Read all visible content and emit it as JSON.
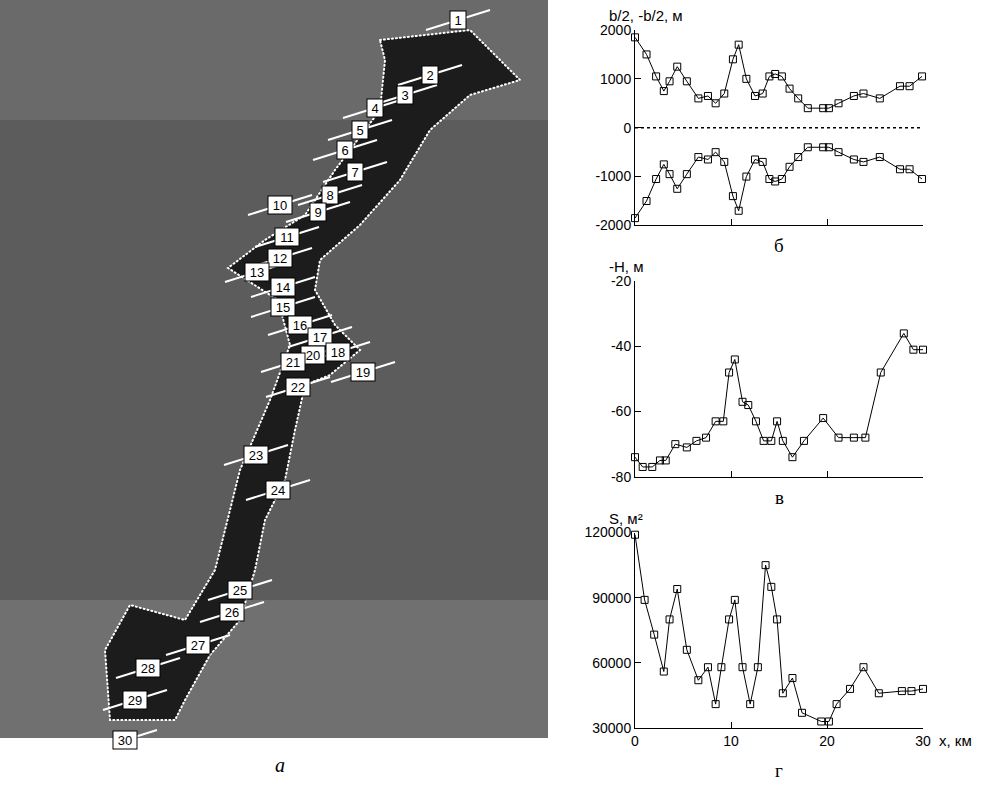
{
  "map": {
    "panel_label": "а",
    "sections": [
      "1",
      "2",
      "3",
      "4",
      "5",
      "6",
      "7",
      "8",
      "9",
      "10",
      "11",
      "12",
      "13",
      "14",
      "15",
      "16",
      "17",
      "18",
      "19",
      "20",
      "21",
      "22",
      "23",
      "24",
      "25",
      "26",
      "27",
      "28",
      "29",
      "30"
    ]
  },
  "chart_data": [
    {
      "type": "line",
      "panel_label": "б",
      "y_label": "b/2, -b/2, м",
      "x": [
        0,
        1.2,
        2.2,
        3,
        3.6,
        4.4,
        5.4,
        6.6,
        7.6,
        8.4,
        9.3,
        10.2,
        10.8,
        11.6,
        12.5,
        13.3,
        14,
        14.6,
        15.3,
        16.1,
        17,
        18,
        19.6,
        20.2,
        21.2,
        22.8,
        23.8,
        25.5,
        27.6,
        28.6,
        29.9
      ],
      "series": [
        {
          "name": "b/2",
          "color": "#000000",
          "values": [
            1850,
            1500,
            1050,
            750,
            950,
            1250,
            950,
            600,
            650,
            500,
            700,
            1400,
            1700,
            1000,
            650,
            700,
            1050,
            1100,
            1050,
            800,
            600,
            400,
            400,
            400,
            500,
            650,
            700,
            600,
            850,
            850,
            1050
          ]
        },
        {
          "name": "-b/2",
          "color": "#000000",
          "values": [
            -1850,
            -1500,
            -1050,
            -750,
            -950,
            -1250,
            -950,
            -600,
            -650,
            -500,
            -700,
            -1400,
            -1700,
            -1000,
            -650,
            -700,
            -1050,
            -1100,
            -1050,
            -800,
            -600,
            -400,
            -400,
            -400,
            -500,
            -650,
            -700,
            -600,
            -850,
            -850,
            -1050
          ]
        }
      ],
      "xlim": [
        0,
        30
      ],
      "xticks": [
        0,
        10,
        20,
        30
      ],
      "ylim": [
        -2000,
        2000
      ],
      "yticks": [
        -2000,
        -1000,
        0,
        1000,
        2000
      ],
      "marker": "square-open",
      "line_style": "solid",
      "grid": false,
      "tick_labels": "y"
    },
    {
      "type": "line",
      "panel_label": "в",
      "y_label": "-H, м",
      "x": [
        0,
        0.8,
        1.8,
        2.6,
        3.2,
        4.2,
        5.4,
        6.4,
        7.4,
        8.4,
        9.2,
        9.8,
        10.4,
        11.2,
        11.8,
        12.6,
        13.4,
        14.2,
        14.8,
        15.4,
        16.4,
        17.6,
        19.6,
        21.2,
        22.8,
        24,
        25.6,
        28,
        29,
        30
      ],
      "series": [
        {
          "name": "-H",
          "color": "#000000",
          "values": [
            -74,
            -77,
            -77,
            -75,
            -75,
            -70,
            -71,
            -69,
            -68,
            -63,
            -63,
            -48,
            -44,
            -57,
            -58,
            -63,
            -69,
            -69,
            -63,
            -69,
            -74,
            -69,
            -62,
            -68,
            -68,
            -68,
            -48,
            -36,
            -41,
            -41
          ]
        }
      ],
      "xlim": [
        0,
        30
      ],
      "xticks": [
        0,
        10,
        20,
        30
      ],
      "ylim": [
        -80,
        -20
      ],
      "yticks": [
        -80,
        -60,
        -40,
        -20
      ],
      "marker": "square-open",
      "line_style": "solid",
      "grid": false,
      "tick_labels": "y"
    },
    {
      "type": "line",
      "panel_label": "г",
      "y_label": "S, м²",
      "x_label": "x, км",
      "x": [
        0,
        1,
        2,
        3,
        3.6,
        4.4,
        5.4,
        6.6,
        7.6,
        8.4,
        9,
        9.8,
        10.4,
        11.2,
        12,
        12.8,
        13.6,
        14.2,
        14.8,
        15.4,
        16.4,
        17.4,
        19.4,
        20.2,
        21,
        22.4,
        23.8,
        25.4,
        27.8,
        28.8,
        30
      ],
      "series": [
        {
          "name": "S",
          "color": "#000000",
          "values": [
            119000,
            89000,
            73000,
            56000,
            80000,
            94000,
            66000,
            52000,
            58000,
            41000,
            58000,
            80000,
            89000,
            58000,
            41000,
            58000,
            105000,
            95000,
            80000,
            46000,
            53000,
            37000,
            33000,
            33000,
            41000,
            48000,
            58000,
            46000,
            47000,
            47000,
            48000
          ]
        }
      ],
      "xlim": [
        0,
        30
      ],
      "xticks": [
        0,
        10,
        20,
        30
      ],
      "ylim": [
        30000,
        120000
      ],
      "yticks": [
        30000,
        60000,
        90000,
        120000
      ],
      "marker": "square-open",
      "line_style": "solid",
      "grid": false
    }
  ]
}
